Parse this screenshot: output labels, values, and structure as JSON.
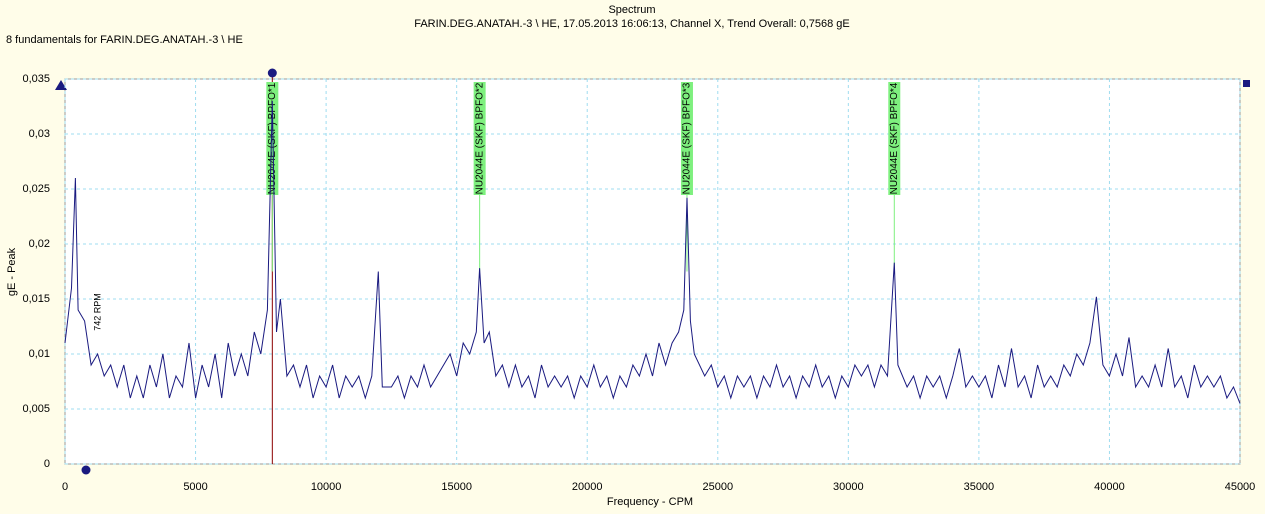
{
  "chart_data": {
    "type": "line",
    "title": "Spectrum",
    "subtitle": "FARIN.DEG.ANATAH.-3 \\ HE, 17.05.2013 16:06:13, Channel X, Trend Overall: 0,7568 gE",
    "note": "8 fundamentals for FARIN.DEG.ANATAH.-3 \\ HE",
    "x_label": "Frequency - CPM",
    "y_label": "gE - Peak",
    "color": "#1a1a80",
    "grid": true,
    "xlim": [
      0,
      45000
    ],
    "xticks": [
      0,
      5000,
      10000,
      15000,
      20000,
      25000,
      30000,
      35000,
      40000,
      45000
    ],
    "ylim": [
      0,
      0.035
    ],
    "yticks": [
      0,
      {
        "value": 0.005,
        "label": "0,005"
      },
      {
        "value": 0.01,
        "label": "0,01"
      },
      {
        "value": 0.015,
        "label": "0,015"
      },
      {
        "value": 0.02,
        "label": "0,02"
      },
      {
        "value": 0.025,
        "label": "0,025"
      },
      {
        "value": 0.03,
        "label": "0,03"
      },
      {
        "value": 0.035,
        "label": "0,035"
      }
    ],
    "markers": [
      {
        "label": "NU2044E (SKF) BPFO*1",
        "x": 7940,
        "color": "#7ef07e"
      },
      {
        "label": "NU2044E (SKF) BPFO*2",
        "x": 15880,
        "color": "#7ef07e"
      },
      {
        "label": "NU2044E (SKF) BPFO*3",
        "x": 23820,
        "color": "#7ef07e"
      },
      {
        "label": "NU2044E (SKF) BPFO*4",
        "x": 31760,
        "color": "#7ef07e"
      }
    ],
    "cursor": {
      "x": 7940,
      "color": "#8b0000"
    },
    "rpm_label": {
      "label": "742 RPM",
      "x": 742
    },
    "x": [
      0,
      250,
      400,
      500,
      750,
      1000,
      1250,
      1500,
      1750,
      2000,
      2250,
      2500,
      2750,
      3000,
      3250,
      3500,
      3750,
      4000,
      4250,
      4500,
      4750,
      5000,
      5250,
      5500,
      5750,
      6000,
      6250,
      6500,
      6750,
      7000,
      7250,
      7500,
      7750,
      7940,
      8100,
      8250,
      8500,
      8750,
      9000,
      9250,
      9500,
      9750,
      10000,
      10250,
      10500,
      10750,
      11000,
      11250,
      11500,
      11750,
      12000,
      12150,
      12500,
      12750,
      13000,
      13250,
      13500,
      13750,
      14000,
      14250,
      14500,
      14750,
      15000,
      15250,
      15500,
      15750,
      15880,
      16050,
      16250,
      16500,
      16750,
      17000,
      17250,
      17500,
      17750,
      18000,
      18250,
      18500,
      18750,
      19000,
      19250,
      19500,
      19750,
      20000,
      20250,
      20500,
      20750,
      21000,
      21250,
      21500,
      21750,
      22000,
      22250,
      22500,
      22750,
      23000,
      23250,
      23500,
      23700,
      23820,
      23950,
      24100,
      24500,
      24750,
      25000,
      25250,
      25500,
      25750,
      26000,
      26250,
      26500,
      26750,
      27000,
      27250,
      27500,
      27750,
      28000,
      28250,
      28500,
      28750,
      29000,
      29250,
      29500,
      29750,
      30000,
      30250,
      30500,
      30750,
      31000,
      31250,
      31500,
      31760,
      31900,
      32250,
      32500,
      32750,
      33000,
      33250,
      33500,
      33750,
      34000,
      34250,
      34500,
      34750,
      35000,
      35250,
      35500,
      35750,
      36000,
      36250,
      36500,
      36750,
      37000,
      37250,
      37500,
      37750,
      38000,
      38250,
      38500,
      38750,
      39000,
      39250,
      39500,
      39750,
      40000,
      40250,
      40500,
      40750,
      41000,
      41250,
      41500,
      41750,
      42000,
      42250,
      42500,
      42750,
      43000,
      43250,
      43500,
      43750,
      44000,
      44250,
      44500,
      44750,
      45000
    ],
    "values": [
      0.011,
      0.016,
      0.026,
      0.014,
      0.013,
      0.009,
      0.01,
      0.008,
      0.009,
      0.007,
      0.009,
      0.006,
      0.008,
      0.006,
      0.009,
      0.007,
      0.01,
      0.006,
      0.008,
      0.007,
      0.011,
      0.006,
      0.009,
      0.007,
      0.01,
      0.006,
      0.011,
      0.008,
      0.01,
      0.008,
      0.012,
      0.01,
      0.014,
      0.033,
      0.012,
      0.015,
      0.008,
      0.009,
      0.007,
      0.009,
      0.006,
      0.008,
      0.007,
      0.009,
      0.006,
      0.008,
      0.007,
      0.008,
      0.006,
      0.008,
      0.0175,
      0.007,
      0.007,
      0.008,
      0.006,
      0.008,
      0.007,
      0.009,
      0.007,
      0.008,
      0.009,
      0.01,
      0.008,
      0.011,
      0.01,
      0.012,
      0.0178,
      0.011,
      0.012,
      0.008,
      0.009,
      0.007,
      0.009,
      0.007,
      0.008,
      0.006,
      0.009,
      0.007,
      0.008,
      0.007,
      0.008,
      0.006,
      0.008,
      0.007,
      0.009,
      0.007,
      0.008,
      0.006,
      0.008,
      0.007,
      0.009,
      0.008,
      0.01,
      0.008,
      0.011,
      0.009,
      0.011,
      0.012,
      0.014,
      0.0242,
      0.013,
      0.01,
      0.008,
      0.009,
      0.007,
      0.008,
      0.006,
      0.008,
      0.007,
      0.008,
      0.006,
      0.008,
      0.007,
      0.009,
      0.007,
      0.008,
      0.006,
      0.008,
      0.007,
      0.009,
      0.007,
      0.008,
      0.006,
      0.008,
      0.007,
      0.009,
      0.008,
      0.009,
      0.007,
      0.009,
      0.008,
      0.0183,
      0.009,
      0.007,
      0.008,
      0.006,
      0.008,
      0.007,
      0.008,
      0.006,
      0.008,
      0.0105,
      0.007,
      0.008,
      0.007,
      0.008,
      0.006,
      0.009,
      0.007,
      0.0105,
      0.007,
      0.008,
      0.006,
      0.009,
      0.007,
      0.008,
      0.007,
      0.009,
      0.008,
      0.01,
      0.009,
      0.011,
      0.0152,
      0.009,
      0.008,
      0.01,
      0.008,
      0.0115,
      0.007,
      0.008,
      0.007,
      0.009,
      0.007,
      0.0105,
      0.007,
      0.008,
      0.006,
      0.009,
      0.007,
      0.008,
      0.007,
      0.008,
      0.006,
      0.007,
      0.0055
    ]
  }
}
